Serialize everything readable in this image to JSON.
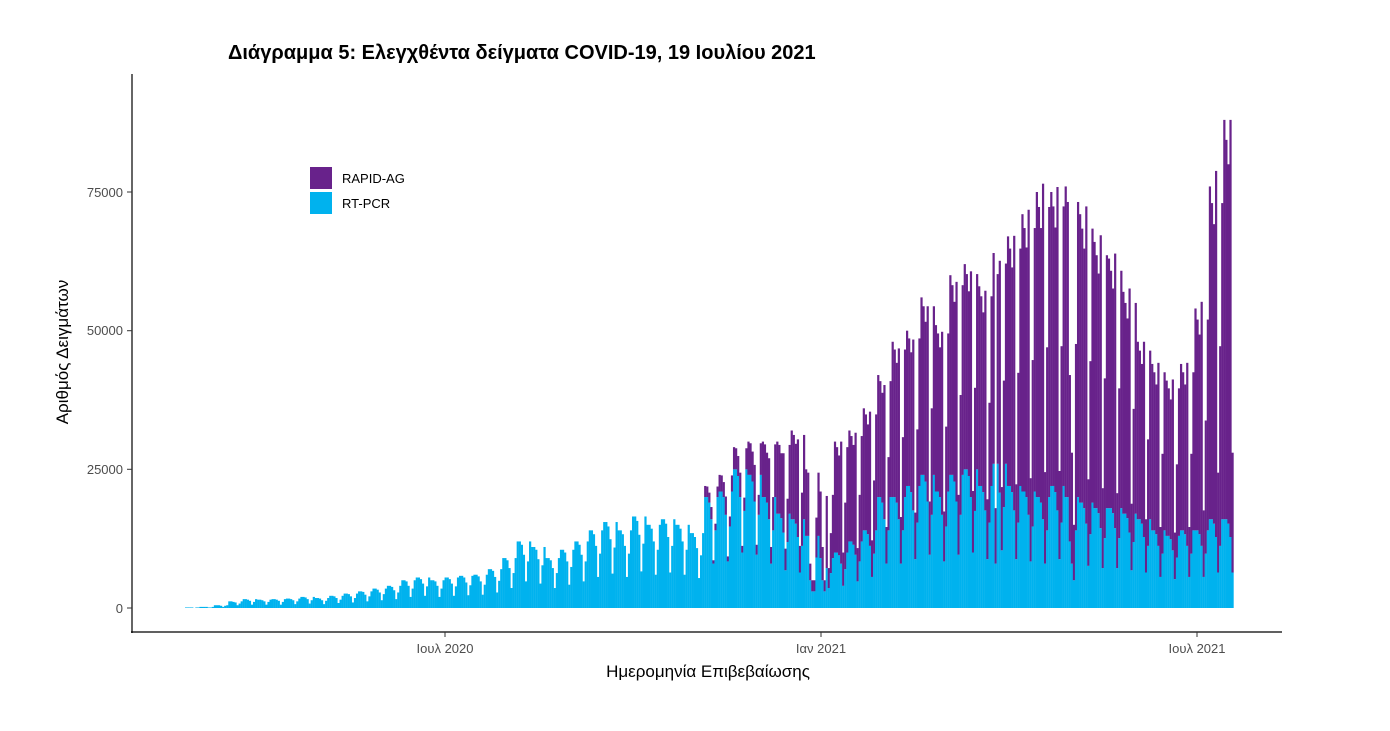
{
  "chart_data": {
    "type": "bar",
    "stacked": true,
    "title": "Διάγραμμα 5: Ελεγχθέντα δείγματα COVID-19, 19 Ιουλίου 2021",
    "xlabel": "Ημερομηνία Επιβεβαίωσης",
    "ylabel": "Αριθμός Δειγμάτων",
    "x_start_date": "2020-02-26",
    "x_unit": "day",
    "value_unit_multiplier": 1000,
    "ylim": [
      0,
      92000
    ],
    "yticks": [
      0,
      25000,
      50000,
      75000
    ],
    "ytick_labels": [
      "0",
      "25000",
      "50000",
      "75000"
    ],
    "xticks": [
      {
        "date": "2020-07-01",
        "label": "Ιουλ 2020"
      },
      {
        "date": "2021-01-01",
        "label": "Ιαν 2021"
      },
      {
        "date": "2021-07-01",
        "label": "Ιουλ 2021"
      }
    ],
    "legend_position": "top-left",
    "grid": false,
    "series": [
      {
        "name": "RT-PCR",
        "color": "#00b2ee",
        "values": [
          0.1,
          0.1,
          0.1,
          0.1,
          0,
          0.1,
          0.1,
          0.2,
          0.2,
          0.2,
          0.2,
          0.1,
          0.1,
          0.2,
          0.5,
          0.5,
          0.5,
          0.4,
          0.2,
          0.4,
          0.5,
          1.2,
          1.2,
          1.1,
          1,
          0.5,
          0.8,
          1.2,
          1.6,
          1.6,
          1.5,
          1.3,
          0.6,
          1.1,
          1.6,
          1.5,
          1.5,
          1.4,
          1.2,
          0.6,
          1.1,
          1.5,
          1.6,
          1.6,
          1.5,
          1.3,
          0.6,
          1.1,
          1.6,
          1.7,
          1.7,
          1.6,
          1.4,
          0.7,
          1.2,
          1.7,
          2,
          2,
          1.9,
          1.6,
          0.8,
          1.4,
          2,
          1.8,
          1.8,
          1.7,
          1.4,
          0.7,
          1.3,
          1.8,
          2.2,
          2.2,
          2.1,
          1.8,
          0.9,
          1.5,
          2.2,
          2.6,
          2.6,
          2.5,
          2.1,
          1,
          1.8,
          2.6,
          3,
          3,
          2.9,
          2.4,
          1.2,
          2.1,
          3,
          3.5,
          3.5,
          3.3,
          2.8,
          1.4,
          2.5,
          3.5,
          4,
          4,
          3.8,
          3.2,
          1.6,
          2.8,
          4,
          5,
          5,
          4.8,
          4,
          2,
          3.5,
          5,
          5.5,
          5.5,
          5.2,
          4.4,
          2.2,
          3.9,
          5.5,
          5,
          5,
          4.8,
          4,
          2,
          3.5,
          5,
          5.5,
          5.5,
          5.2,
          4.4,
          2.2,
          3.9,
          5.5,
          5.8,
          5.8,
          5.5,
          4.6,
          2.3,
          4.1,
          5.8,
          6,
          6,
          5.7,
          4.8,
          2.4,
          4.2,
          6,
          7,
          7,
          6.7,
          5.6,
          2.8,
          4.9,
          7,
          9,
          9,
          8.6,
          7.2,
          3.6,
          6.3,
          9,
          12,
          12,
          11.4,
          9.6,
          4.8,
          8.4,
          12,
          11,
          11,
          10.5,
          8.8,
          4.4,
          7.7,
          11,
          9,
          9,
          8.6,
          7.2,
          3.6,
          6.3,
          9,
          10.5,
          10.5,
          10,
          8.4,
          4.2,
          7.4,
          10.5,
          12,
          12,
          11.4,
          9.6,
          4.8,
          8.4,
          12,
          14,
          14,
          13.3,
          11.2,
          5.6,
          9.8,
          14,
          15.5,
          15.5,
          14.7,
          12.4,
          6.2,
          10.9,
          15.5,
          14,
          14,
          13.3,
          11.2,
          5.6,
          9.8,
          14,
          16.5,
          16.5,
          15.7,
          13.2,
          6.6,
          11.6,
          16.5,
          15,
          15,
          14.3,
          12,
          6,
          10.5,
          15,
          16,
          16,
          15.2,
          12.8,
          6.4,
          11.2,
          16,
          15,
          15,
          14.3,
          12,
          6,
          10.5,
          15,
          13.5,
          13.5,
          12.8,
          10.8,
          5.4,
          9.5,
          13.5,
          20,
          20,
          19,
          16,
          8,
          14,
          20,
          21,
          21,
          20,
          16.8,
          8.4,
          14.7,
          21,
          25,
          25,
          23.8,
          20,
          10,
          17.5,
          25,
          24,
          24,
          22.8,
          19.2,
          9.6,
          16.8,
          24,
          20,
          20,
          19,
          16,
          8,
          14,
          20,
          17,
          17,
          16.2,
          13.6,
          6.8,
          11.9,
          17,
          16,
          16,
          15.2,
          12.8,
          6.4,
          11.2,
          16,
          13,
          13,
          5,
          3,
          3,
          9.1,
          13,
          9,
          5,
          3,
          7.2,
          3.6,
          6.3,
          9,
          10,
          10,
          9.5,
          8,
          4,
          7,
          10,
          12,
          12,
          11.4,
          9.6,
          4.8,
          8.4,
          12,
          14,
          14,
          13.3,
          11.2,
          5.6,
          9.8,
          14,
          20,
          20,
          19,
          16,
          8,
          14,
          20,
          20,
          20,
          19,
          16,
          8,
          14,
          20,
          22,
          22,
          20.9,
          17.6,
          8.8,
          15.4,
          22,
          24,
          24,
          22.8,
          19.2,
          9.6,
          16.8,
          24,
          21,
          21,
          20,
          16.8,
          8.4,
          14.7,
          21,
          24,
          24,
          22.8,
          19.2,
          9.6,
          16.8,
          24,
          25,
          25,
          23.8,
          20,
          10,
          17.5,
          25,
          22,
          22,
          20.9,
          17.6,
          8.8,
          15.4,
          22,
          26,
          8,
          26,
          20.8,
          10.4,
          18.2,
          26,
          22,
          22,
          20.9,
          17.6,
          8.8,
          15.4,
          22,
          21,
          21,
          20,
          16.8,
          8.4,
          14.7,
          21,
          20,
          20,
          19,
          16,
          8,
          14,
          20,
          22,
          22,
          20.9,
          17.6,
          8.8,
          15.4,
          22,
          20,
          20,
          12,
          8,
          5,
          14,
          20,
          19,
          19,
          18,
          15.2,
          7.6,
          13.3,
          19,
          18,
          18,
          17.1,
          14.4,
          7.2,
          12.6,
          18,
          18,
          18,
          17.1,
          14.4,
          7.2,
          12.6,
          18,
          17,
          17,
          16.2,
          13.6,
          6.8,
          11.9,
          17,
          16,
          16,
          15.2,
          12.8,
          6.4,
          11.2,
          16,
          14,
          14,
          13.3,
          11.2,
          5.6,
          9.8,
          14,
          13,
          13,
          12.4,
          10.4,
          5.2,
          9.1,
          13,
          14,
          14,
          13.3,
          11.2,
          5.6,
          9.8,
          14,
          14,
          14,
          13.3,
          11.2,
          5.6,
          9.8,
          14,
          16,
          16,
          15.2,
          12.8,
          6.4,
          11.2,
          16,
          16,
          16,
          15.2,
          12.8,
          6.4
        ]
      },
      {
        "name": "RAPID-AG",
        "color": "#68228b",
        "values": [
          0,
          0,
          0,
          0,
          0,
          0,
          0,
          0,
          0,
          0,
          0,
          0,
          0,
          0,
          0,
          0,
          0,
          0,
          0,
          0,
          0,
          0,
          0,
          0,
          0,
          0,
          0,
          0,
          0,
          0,
          0,
          0,
          0,
          0,
          0,
          0,
          0,
          0,
          0,
          0,
          0,
          0,
          0,
          0,
          0,
          0,
          0,
          0,
          0,
          0,
          0,
          0,
          0,
          0,
          0,
          0,
          0,
          0,
          0,
          0,
          0,
          0,
          0,
          0,
          0,
          0,
          0,
          0,
          0,
          0,
          0,
          0,
          0,
          0,
          0,
          0,
          0,
          0,
          0,
          0,
          0,
          0,
          0,
          0,
          0,
          0,
          0,
          0,
          0,
          0,
          0,
          0,
          0,
          0,
          0,
          0,
          0,
          0,
          0,
          0,
          0,
          0,
          0,
          0,
          0,
          0,
          0,
          0,
          0,
          0,
          0,
          0,
          0,
          0,
          0,
          0,
          0,
          0,
          0,
          0,
          0,
          0,
          0,
          0,
          0,
          0,
          0,
          0,
          0,
          0,
          0,
          0,
          0,
          0,
          0,
          0,
          0,
          0,
          0,
          0,
          0,
          0,
          0,
          0,
          0,
          0,
          0,
          0,
          0,
          0,
          0,
          0,
          0,
          0,
          0,
          0,
          0,
          0,
          0,
          0,
          0,
          0,
          0,
          0,
          0,
          0,
          0,
          0,
          0,
          0,
          0,
          0,
          0,
          0,
          0,
          0,
          0,
          0,
          0,
          0,
          0,
          0,
          0,
          0,
          0,
          0,
          0,
          0,
          0,
          0,
          0,
          0,
          0,
          0,
          0,
          0,
          0,
          0,
          0,
          0,
          0,
          0,
          0,
          0,
          0,
          0,
          0,
          0,
          0,
          0,
          0,
          0,
          0,
          0,
          0,
          0,
          0,
          0,
          0,
          0,
          0,
          0,
          0,
          0,
          0,
          0,
          0,
          0,
          0,
          0,
          0,
          0,
          0,
          0,
          0,
          0,
          0,
          0,
          0,
          0,
          0,
          0,
          0,
          0,
          0,
          0,
          0,
          0,
          0,
          0,
          0,
          0,
          2,
          1.9,
          1.8,
          2.2,
          0.6,
          1.2,
          1.9,
          3,
          2.9,
          2.7,
          3.3,
          0.9,
          1.8,
          2.9,
          4,
          3.8,
          3.6,
          4.4,
          1.2,
          2.4,
          3.8,
          6,
          5.7,
          5.4,
          6.6,
          1.8,
          3.6,
          5.7,
          10,
          9.5,
          9,
          11,
          3,
          6,
          9.5,
          13,
          12.4,
          11.7,
          14.3,
          3.9,
          7.8,
          12.4,
          16,
          15.2,
          14.4,
          17.6,
          4.8,
          9.6,
          15.2,
          12,
          11.4,
          3,
          2,
          2,
          7.2,
          11.4,
          12,
          6,
          2,
          13,
          3.6,
          7.2,
          11.4,
          20,
          19,
          18,
          22,
          6,
          12,
          19,
          20,
          19,
          18,
          22,
          6,
          12,
          19,
          22,
          20.9,
          19.8,
          24.2,
          6.6,
          13.2,
          20.9,
          22,
          20.9,
          19.8,
          24.2,
          6.6,
          13.2,
          20.9,
          28,
          26.6,
          25.2,
          30.8,
          8.4,
          16.8,
          26.6,
          28,
          26.6,
          25.2,
          30.8,
          8.4,
          16.8,
          26.6,
          32,
          30.4,
          28.8,
          35.2,
          9.6,
          19.2,
          30.4,
          30,
          28.5,
          27,
          33,
          9,
          18,
          28.5,
          36,
          34.2,
          32.4,
          39.6,
          10.8,
          21.6,
          34.2,
          37,
          35.2,
          33.3,
          40.7,
          11.1,
          22.2,
          35.2,
          36,
          34.2,
          32.4,
          39.6,
          10.8,
          21.6,
          34.2,
          38,
          10,
          34.2,
          41.8,
          11.4,
          22.8,
          36.1,
          45,
          42.8,
          40.5,
          49.5,
          13.5,
          27,
          42.8,
          50,
          47.5,
          45,
          55,
          15,
          30,
          47.5,
          55,
          52.3,
          49.5,
          60.5,
          16.5,
          33,
          52.3,
          53,
          50.4,
          47.7,
          58.3,
          15.9,
          31.8,
          50.4,
          56,
          53.2,
          30,
          20,
          10,
          33.6,
          53.2,
          52,
          49.4,
          46.8,
          57.2,
          15.6,
          31.2,
          49.4,
          48,
          45.6,
          43.2,
          52.8,
          14.4,
          28.8,
          45.6,
          45,
          42.8,
          40.5,
          49.5,
          13.5,
          27,
          42.8,
          40,
          38,
          36,
          44,
          12,
          24,
          38,
          32,
          30.4,
          28.8,
          35.2,
          9.6,
          19.2,
          30.4,
          30,
          28.5,
          27,
          33,
          9,
          18,
          28.5,
          28,
          26.6,
          25.2,
          30.8,
          8.4,
          16.8,
          26.6,
          30,
          28.5,
          27,
          33,
          9,
          18,
          28.5,
          40,
          38,
          36,
          44,
          12,
          24,
          38,
          60,
          57,
          54,
          66,
          18,
          36,
          57,
          72,
          68.4,
          64.8,
          75.2,
          21.6
        ]
      }
    ]
  }
}
